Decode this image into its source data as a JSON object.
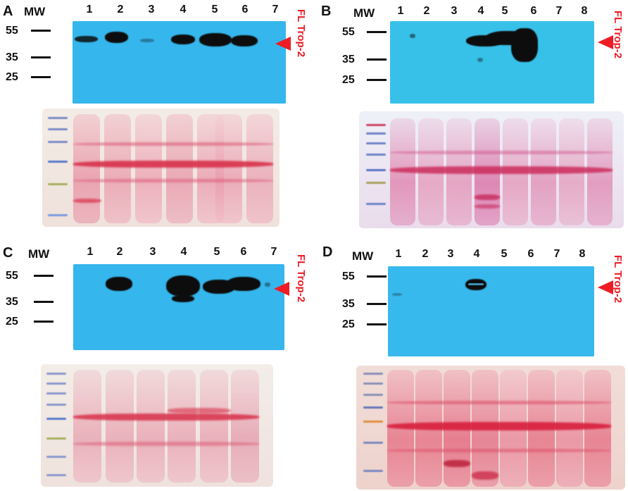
{
  "panels": [
    {
      "letter": "A",
      "mw_label": "MW",
      "lanes": [
        "1",
        "2",
        "3",
        "4",
        "5",
        "6",
        "7"
      ],
      "markers": [
        "55",
        "35",
        "25"
      ],
      "band_label": "FL Trop-2"
    },
    {
      "letter": "B",
      "mw_label": "MW",
      "lanes": [
        "1",
        "2",
        "3",
        "4",
        "5",
        "6",
        "7",
        "8"
      ],
      "markers": [
        "55",
        "35",
        "25"
      ],
      "band_label": "FL Trop-2"
    },
    {
      "letter": "C",
      "mw_label": "MW",
      "lanes": [
        "1",
        "2",
        "3",
        "4",
        "5",
        "6",
        "7"
      ],
      "markers": [
        "55",
        "35",
        "25"
      ],
      "band_label": "FL Trop-2"
    },
    {
      "letter": "D",
      "mw_label": "MW",
      "lanes": [
        "1",
        "2",
        "3",
        "4",
        "5",
        "6",
        "7",
        "8"
      ],
      "markers": [
        "55",
        "35",
        "25"
      ],
      "band_label": "FL Trop-2"
    }
  ],
  "colors": {
    "blot_background": "#35b6ec",
    "band": "#0d0d0d",
    "arrow": "#ee1c25",
    "ponceau_pink": "#e05878",
    "ponceau_red": "#d8304a"
  }
}
